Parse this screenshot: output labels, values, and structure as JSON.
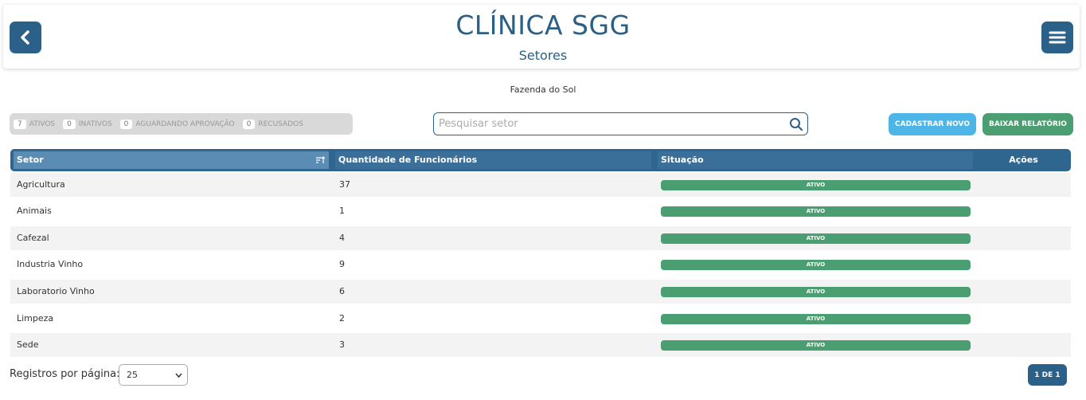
{
  "header": {
    "title": "CLÍNICA SGG",
    "subtitle": "Setores"
  },
  "company": "Fazenda do Sol",
  "status_filters": [
    {
      "count": 7,
      "label": "ATIVOS"
    },
    {
      "count": 0,
      "label": "INATIVOS"
    },
    {
      "count": 0,
      "label": "AGUARDANDO APROVAÇÃO"
    },
    {
      "count": 0,
      "label": "RECUSADOS"
    }
  ],
  "search": {
    "placeholder": "Pesquisar setor"
  },
  "buttons": {
    "new": "CADASTRAR NOVO",
    "report": "BAIXAR RELATÓRIO"
  },
  "table": {
    "columns": [
      "Setor",
      "Quantidade de Funcionários",
      "Situação",
      "Ações"
    ],
    "rows": [
      [
        "Agricultura",
        37,
        "ATIVO"
      ],
      [
        "Animais",
        1,
        "ATIVO"
      ],
      [
        "Cafezal",
        4,
        "ATIVO"
      ],
      [
        "Industria Vinho",
        9,
        "ATIVO"
      ],
      [
        "Laboratorio Vinho",
        6,
        "ATIVO"
      ],
      [
        "Limpeza",
        2,
        "ATIVO"
      ],
      [
        "Sede",
        3,
        "ATIVO"
      ]
    ]
  },
  "footer": {
    "per_page_label": "Registros por página:",
    "per_page_value": "25",
    "pagination": "1 DE 1"
  }
}
